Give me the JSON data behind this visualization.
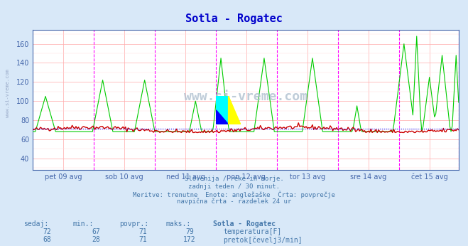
{
  "title": "Sotla - Rogatec",
  "bg_color": "#d8e8f8",
  "plot_bg_color": "#ffffff",
  "title_color": "#0000cc",
  "axis_color": "#4466aa",
  "grid_color_major": "#ffaaaa",
  "grid_color_minor": "#ffdddd",
  "vline_color": "#ff00ff",
  "vline_color2": "#888888",
  "temp_color": "#cc0000",
  "flow_color": "#00cc00",
  "avg_line_color": "#0000ff",
  "ylim": [
    28,
    175
  ],
  "yticks": [
    40,
    60,
    80,
    100,
    120,
    140,
    160
  ],
  "xlabel_color": "#4477aa",
  "xtick_labels": [
    "pet 09 avg",
    "sob 10 avg",
    "ned 11 avg",
    "pon 12 avg",
    "tor 13 avg",
    "sre 14 avg",
    "čet 15 avg"
  ],
  "subtitle_lines": [
    "Slovenija / reke in morje.",
    "zadnji teden / 30 minut.",
    "Meritve: trenutne  Enote: anglešaške  Črta: povprečje",
    "navpična črta - razdelek 24 ur"
  ],
  "table_headers": [
    "sedaj:",
    "min.:",
    "povpr.:",
    "maks.:",
    "Sotla - Rogatec"
  ],
  "table_row1": [
    "72",
    "67",
    "71",
    "79",
    "temperatura[F]"
  ],
  "table_row2": [
    "68",
    "28",
    "71",
    "172",
    "pretok[čevelj3/min]"
  ],
  "temp_avg": 71,
  "flow_avg": 71,
  "watermark_text": "www.si-vreme.com",
  "n_points": 336
}
